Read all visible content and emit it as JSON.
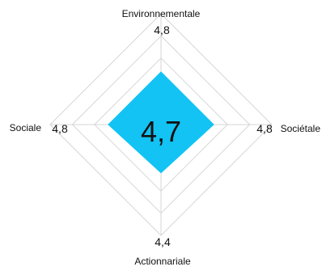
{
  "chart_data": {
    "type": "radar",
    "center_value": "4,7",
    "axes": [
      {
        "name": "Environnementale",
        "value": 4.8,
        "value_label": "4,8",
        "position": "top"
      },
      {
        "name": "Sociétale",
        "value": 4.8,
        "value_label": "4,8",
        "position": "right"
      },
      {
        "name": "Actionnariale",
        "value": 4.4,
        "value_label": "4,4",
        "position": "bottom"
      },
      {
        "name": "Sociale",
        "value": 4.8,
        "value_label": "4,8",
        "position": "left"
      }
    ],
    "polygon_values": [
      4.8,
      4.8,
      4.4,
      4.8
    ],
    "rmax": 10,
    "grid_rings": 5,
    "fill_color": "#12c3f4",
    "grid_color": "#d6d6d6"
  }
}
